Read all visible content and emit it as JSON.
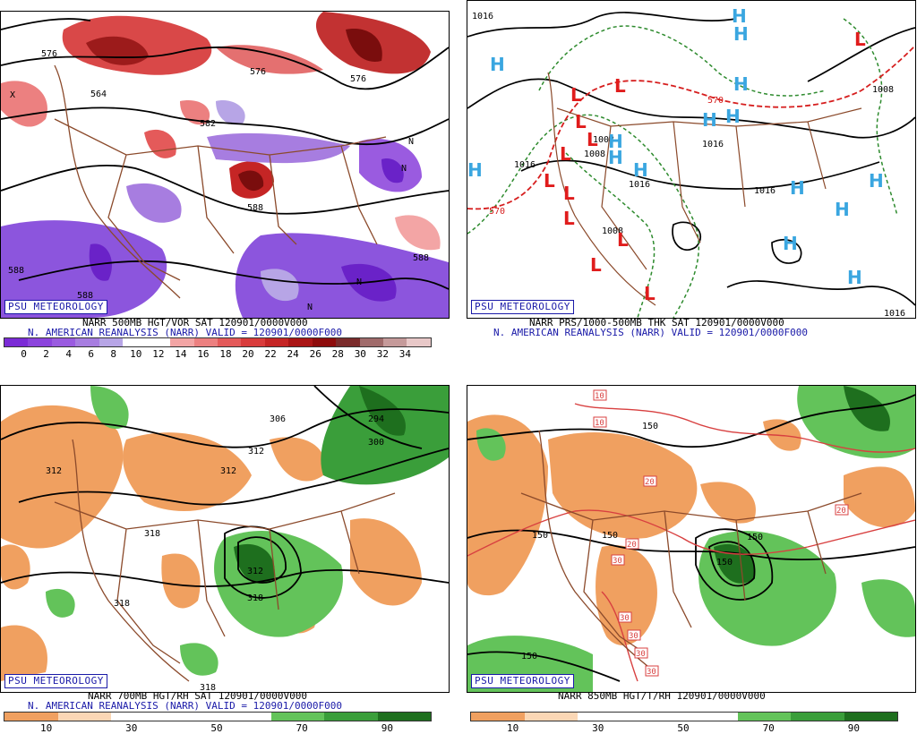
{
  "brand": "PSU METEOROLOGY",
  "panels": {
    "top_left": {
      "title": "NARR 500MB HGT/VOR SAT 120901/0000V000",
      "valid": "N. AMERICAN REANALYSIS (NARR) VALID = 120901/0000F000",
      "colorbar_labels": [
        "0",
        "2",
        "4",
        "6",
        "8",
        "10",
        "12",
        "14",
        "16",
        "18",
        "20",
        "22",
        "24",
        "26",
        "28",
        "30",
        "32",
        "34"
      ],
      "colorbar_colors": [
        "#7b2bd6",
        "#8c44dd",
        "#9a5be0",
        "#a77de0",
        "#b7a5e6",
        "#ffffff",
        "#ffffff",
        "#f3a5a5",
        "#ec8080",
        "#e45a5a",
        "#d93c3c",
        "#c52525",
        "#aa1515",
        "#8e0c0c",
        "#7a2b2b",
        "#a06b6b",
        "#c59a9a",
        "#e8c8c8"
      ],
      "contour_labels": [
        "576",
        "564",
        "576",
        "582",
        "588",
        "588",
        "588",
        "588",
        "588",
        "576",
        "564"
      ],
      "center_letters": [
        "N",
        "N",
        "N",
        "N",
        "X"
      ]
    },
    "top_right": {
      "title": "NARR PRS/1000-500MB THK SAT 120901/0000V000",
      "valid": "N. AMERICAN REANALYSIS (NARR) VALID = 120901/0000F000",
      "contour_labels": [
        "1016",
        "1008",
        "1016",
        "1016",
        "1016",
        "1008",
        "1016",
        "1008",
        "1016",
        "1008",
        "570",
        "570",
        "1016"
      ],
      "highs": [
        "H",
        "H",
        "H",
        "H",
        "H",
        "H",
        "H",
        "H",
        "H",
        "H",
        "H",
        "H",
        "H",
        "H",
        "H"
      ],
      "lows": [
        "L",
        "L",
        "L",
        "L",
        "L",
        "L",
        "L",
        "L",
        "L",
        "L",
        "L",
        "L"
      ]
    },
    "bottom_left": {
      "title": "NARR 700MB HGT/RH SAT 120901/0000V000",
      "valid": "N. AMERICAN REANALYSIS (NARR) VALID = 120901/0000F000",
      "colorbar_labels": [
        "10",
        "30",
        "50",
        "70",
        "90"
      ],
      "colorbar_colors": [
        "#f0a060",
        "#fbd7b5",
        "#ffffff",
        "#ffffff",
        "#ffffff",
        "#63c35a",
        "#3a9e3a",
        "#1e6f1e"
      ],
      "contour_labels": [
        "306",
        "294",
        "300",
        "312",
        "312",
        "312",
        "318",
        "312",
        "318",
        "318",
        "318"
      ]
    },
    "bottom_right": {
      "title": "NARR 850MB HGT/T/RH 120901/0000V000",
      "colorbar_labels": [
        "10",
        "30",
        "50",
        "70",
        "90"
      ],
      "colorbar_colors": [
        "#f0a060",
        "#fbd7b5",
        "#ffffff",
        "#ffffff",
        "#ffffff",
        "#63c35a",
        "#3a9e3a",
        "#1e6f1e"
      ],
      "contour_labels": [
        "150",
        "150",
        "150",
        "150",
        "150",
        "150",
        "150"
      ],
      "temp_labels": [
        "10",
        "10",
        "20",
        "20",
        "20",
        "30",
        "30",
        "30",
        "30",
        "30"
      ]
    }
  }
}
